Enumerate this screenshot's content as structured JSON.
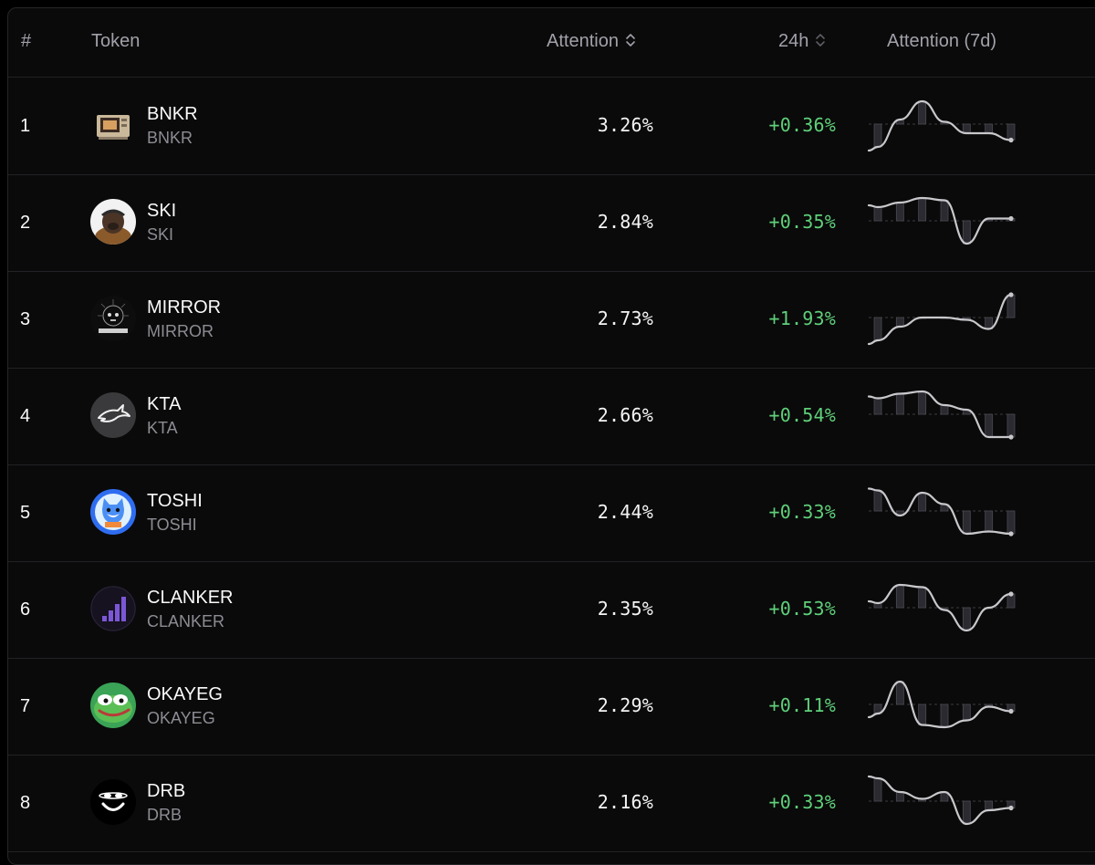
{
  "header": {
    "rank": "#",
    "token": "Token",
    "attention": "Attention",
    "change_24h": "24h",
    "attention_7d": "Attention (7d)"
  },
  "colors": {
    "positive": "#5fd07a",
    "sparkline": "#c8c8cc"
  },
  "rows": [
    {
      "rank": "1",
      "name": "BNKR",
      "symbol": "BNKR",
      "attention": "3.26%",
      "change": "+0.36%",
      "icon": "bnkr-computer-icon",
      "trend": [
        0,
        0.6,
        1.0,
        0.55,
        0.3,
        0.3,
        0.15
      ]
    },
    {
      "rank": "2",
      "name": "SKI",
      "symbol": "SKI",
      "attention": "2.84%",
      "change": "+0.35%",
      "icon": "ski-dog-avatar-icon",
      "trend": [
        0.8,
        0.9,
        1.0,
        0.95,
        0.0,
        0.55,
        0.55
      ]
    },
    {
      "rank": "3",
      "name": "MIRROR",
      "symbol": "MIRROR",
      "attention": "2.73%",
      "change": "+1.93%",
      "icon": "mirror-skull-icon",
      "trend": [
        0.0,
        0.3,
        0.5,
        0.5,
        0.45,
        0.25,
        1.0
      ]
    },
    {
      "rank": "4",
      "name": "KTA",
      "symbol": "KTA",
      "attention": "2.66%",
      "change": "+0.54%",
      "icon": "kta-shark-icon",
      "trend": [
        0.85,
        0.95,
        1.0,
        0.7,
        0.6,
        0.0,
        0.0
      ]
    },
    {
      "rank": "5",
      "name": "TOSHI",
      "symbol": "TOSHI",
      "attention": "2.44%",
      "change": "+0.33%",
      "icon": "toshi-cat-icon",
      "trend": [
        0.95,
        0.4,
        0.9,
        0.65,
        0.0,
        0.05,
        0.0
      ]
    },
    {
      "rank": "6",
      "name": "CLANKER",
      "symbol": "CLANKER",
      "attention": "2.35%",
      "change": "+0.53%",
      "icon": "clanker-bars-icon",
      "trend": [
        0.6,
        1.0,
        0.95,
        0.45,
        0.0,
        0.5,
        0.8
      ]
    },
    {
      "rank": "7",
      "name": "OKAYEG",
      "symbol": "OKAYEG",
      "attention": "2.29%",
      "change": "+0.11%",
      "icon": "okayeg-frog-icon",
      "trend": [
        0.3,
        1.0,
        0.05,
        0.0,
        0.15,
        0.45,
        0.35
      ]
    },
    {
      "rank": "8",
      "name": "DRB",
      "symbol": "DRB",
      "attention": "2.16%",
      "change": "+0.33%",
      "icon": "drb-smiley-icon",
      "trend": [
        1.0,
        0.7,
        0.55,
        0.7,
        0.0,
        0.3,
        0.35
      ]
    }
  ]
}
